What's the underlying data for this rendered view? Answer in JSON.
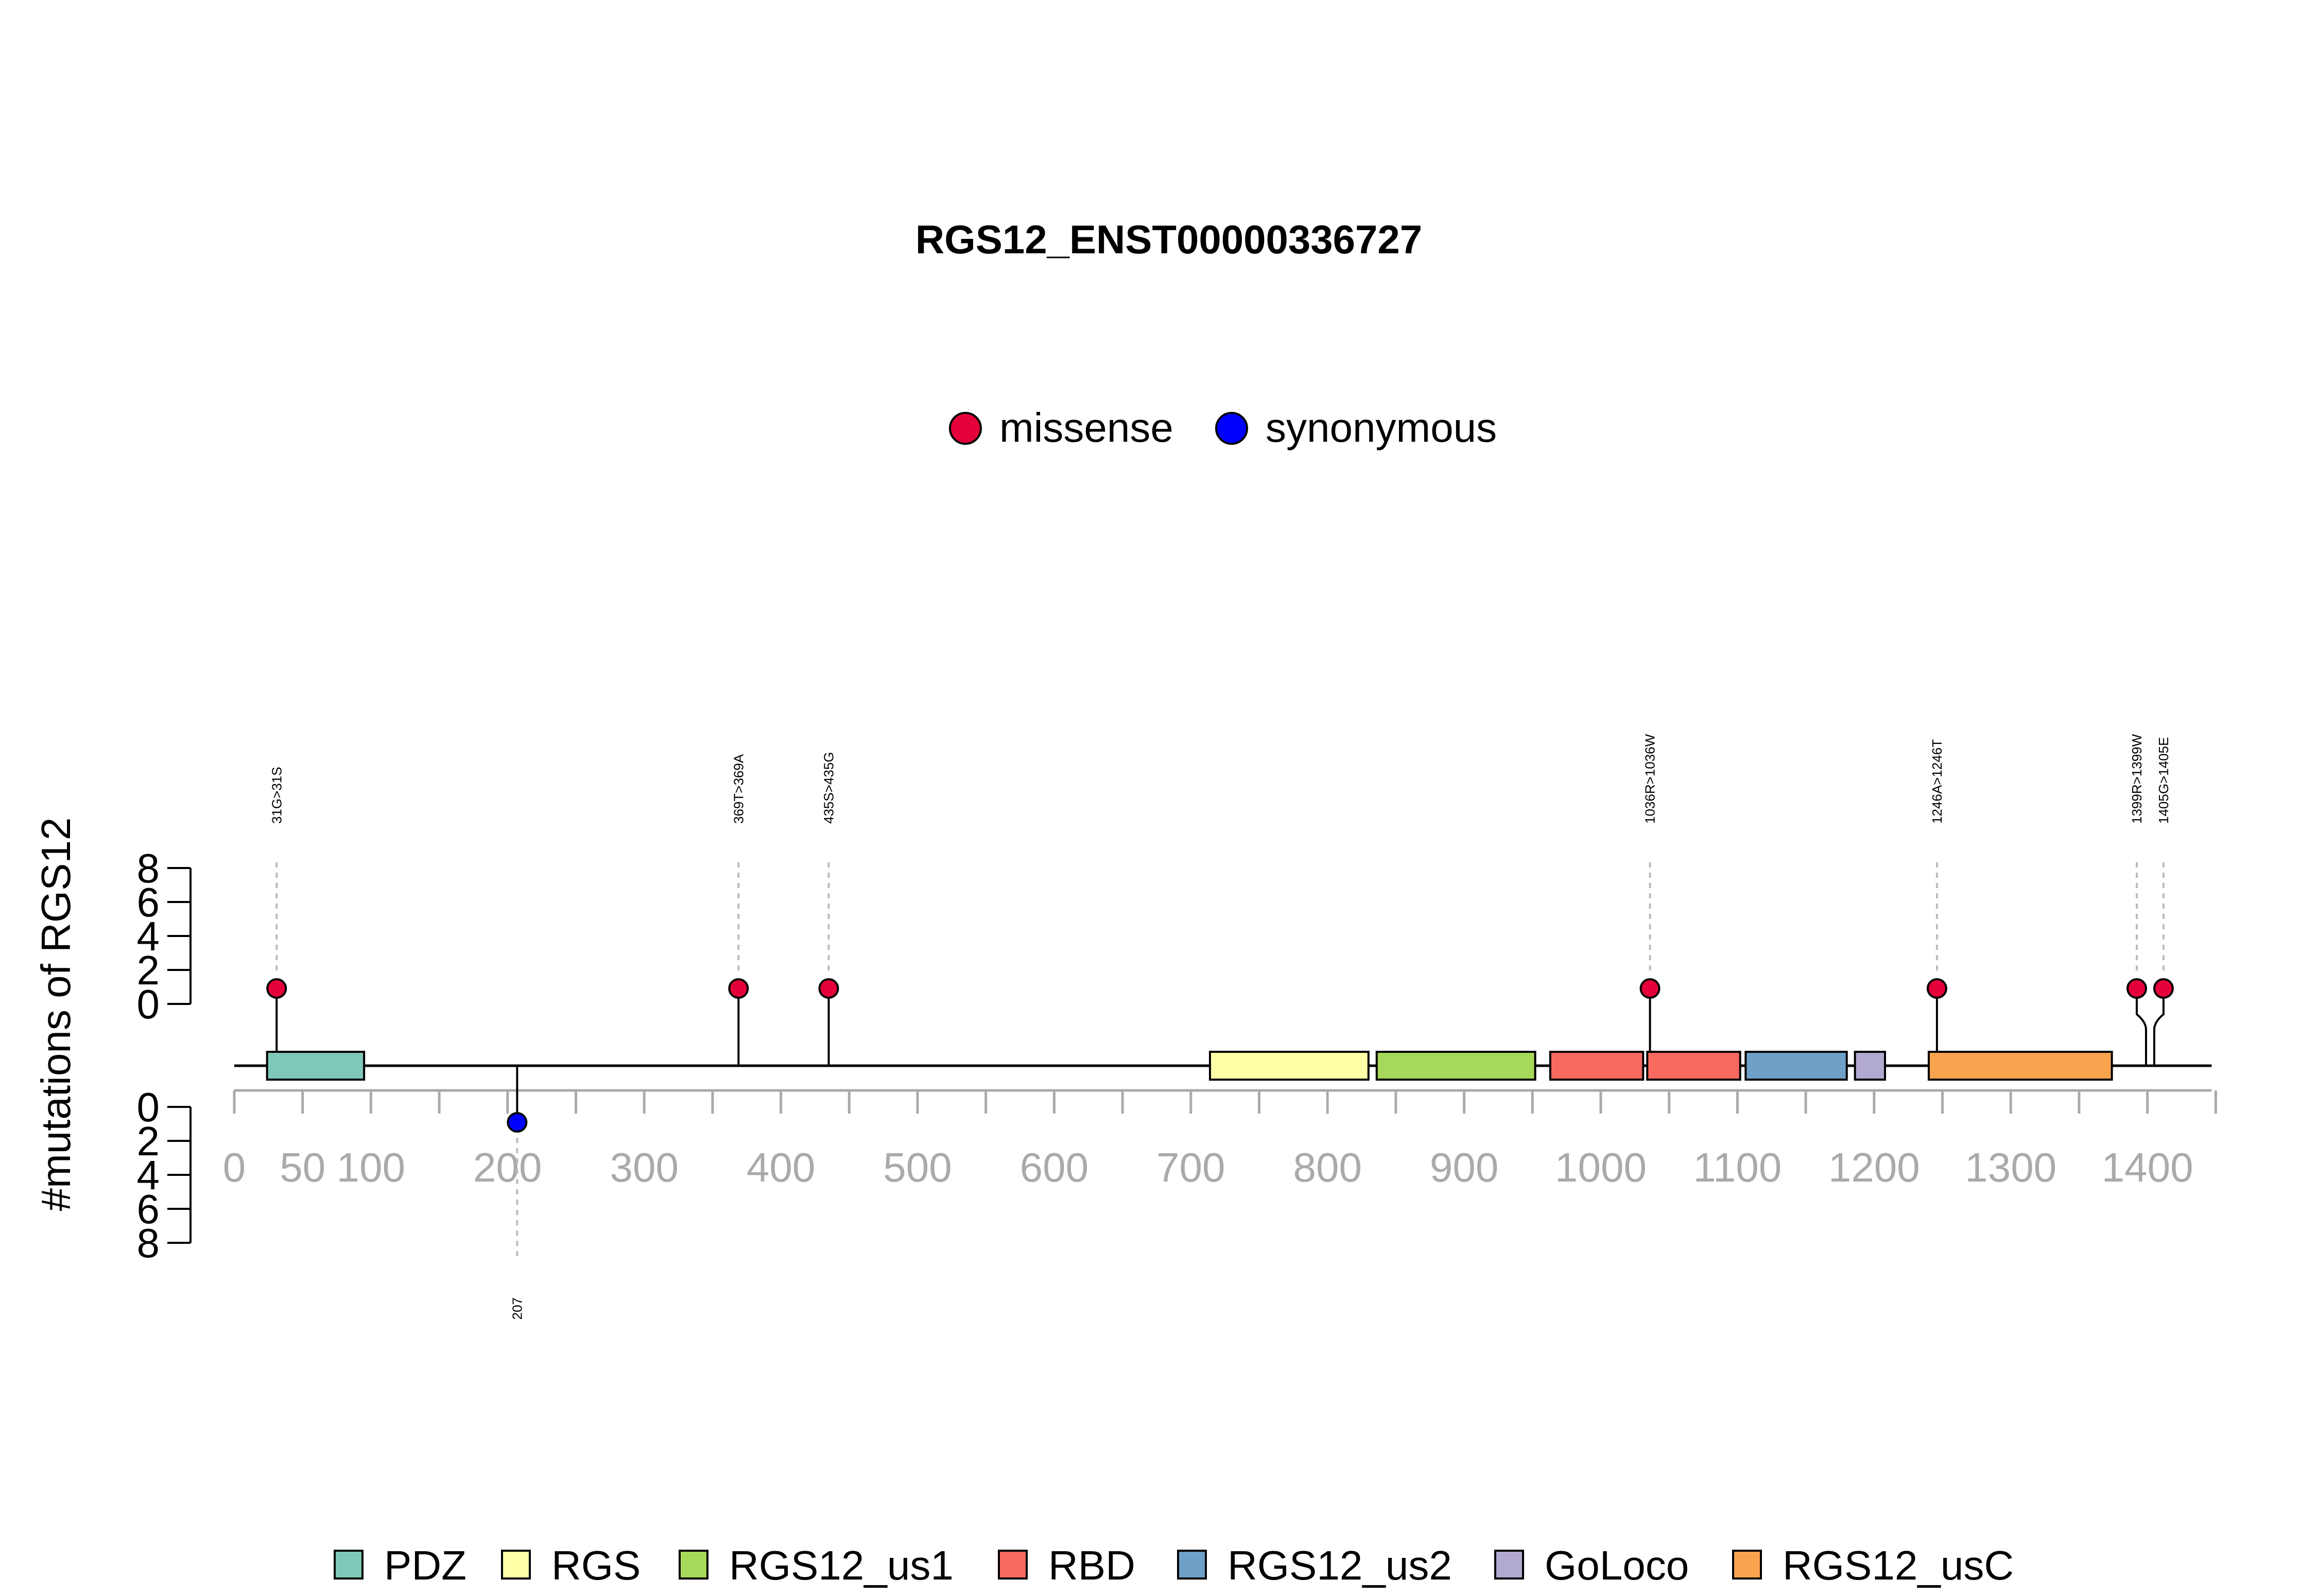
{
  "chart_data": {
    "type": "lollipop",
    "title": "RGS12_ENST00000336727",
    "ylabel": "#mutations of RGS12",
    "xlim": [
      0,
      1447
    ],
    "yticks": [
      "0",
      "2",
      "4",
      "6",
      "8"
    ],
    "ylim": [
      0,
      8
    ],
    "xticks": [
      0,
      50,
      100,
      200,
      300,
      400,
      500,
      600,
      700,
      800,
      900,
      1000,
      1100,
      1200,
      1300,
      1400
    ],
    "xtick_labels": [
      "0",
      "50",
      "100",
      "200",
      "300",
      "400",
      "500",
      "600",
      "700",
      "800",
      "900",
      "1000",
      "1100",
      "1200",
      "1300",
      "1400"
    ],
    "mutation_types": [
      {
        "name": "missense",
        "color": "#E4003A"
      },
      {
        "name": "synonymous",
        "color": "#0000FF"
      }
    ],
    "mutations": [
      {
        "position": 31,
        "label": "31G>31S",
        "type": "missense",
        "count": 1,
        "strand": "top"
      },
      {
        "position": 369,
        "label": "369T>369A",
        "type": "missense",
        "count": 1,
        "strand": "top"
      },
      {
        "position": 435,
        "label": "435S>435G",
        "type": "missense",
        "count": 1,
        "strand": "top"
      },
      {
        "position": 1036,
        "label": "1036R>1036W",
        "type": "missense",
        "count": 1,
        "strand": "top"
      },
      {
        "position": 1246,
        "label": "1246A>1246T",
        "type": "missense",
        "count": 1,
        "strand": "top"
      },
      {
        "position": 1399,
        "label": "1399R>1399W",
        "type": "missense",
        "count": 1,
        "strand": "top"
      },
      {
        "position": 1405,
        "label": "1405G>1405E",
        "type": "missense",
        "count": 1,
        "strand": "top"
      },
      {
        "position": 207,
        "label": "207",
        "type": "synonymous",
        "count": 1,
        "strand": "bottom"
      }
    ],
    "domains": [
      {
        "name": "PDZ",
        "start": 24,
        "end": 95,
        "color": "#7FC8B8"
      },
      {
        "name": "RGS",
        "start": 714,
        "end": 830,
        "color": "#FFFFA8"
      },
      {
        "name": "RGS12_us1",
        "start": 836,
        "end": 952,
        "color": "#A6D85A"
      },
      {
        "name": "RBD",
        "start": 963,
        "end": 1031,
        "color": "#F8695F"
      },
      {
        "name": "RBD",
        "start": 1034,
        "end": 1102,
        "color": "#F8695F"
      },
      {
        "name": "RGS12_us2",
        "start": 1106,
        "end": 1180,
        "color": "#6EA0C8"
      },
      {
        "name": "GoLoco",
        "start": 1186,
        "end": 1208,
        "color": "#B2A9D0"
      },
      {
        "name": "RGS12_usC",
        "start": 1240,
        "end": 1374,
        "color": "#F8A44E"
      }
    ],
    "domain_legend": [
      {
        "name": "PDZ",
        "color": "#7FC8B8"
      },
      {
        "name": "RGS",
        "color": "#FFFFA8"
      },
      {
        "name": "RGS12_us1",
        "color": "#A6D85A"
      },
      {
        "name": "RBD",
        "color": "#F8695F"
      },
      {
        "name": "RGS12_us2",
        "color": "#6EA0C8"
      },
      {
        "name": "GoLoco",
        "color": "#B2A9D0"
      },
      {
        "name": "RGS12_usC",
        "color": "#F8A44E"
      }
    ]
  }
}
